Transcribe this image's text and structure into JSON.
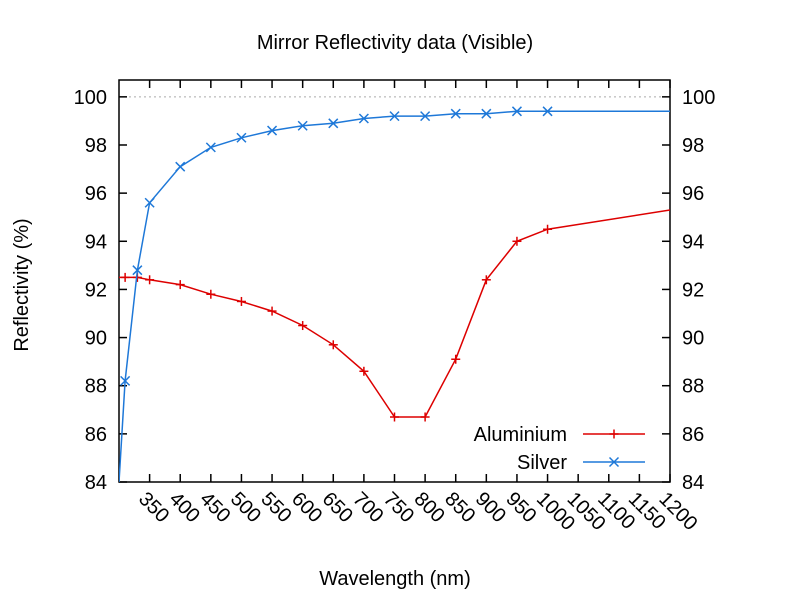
{
  "chart_data": {
    "type": "line",
    "title": "Mirror Reflectivity data (Visible)",
    "xlabel": "Wavelength (nm)",
    "ylabel": "Reflectivity (%)",
    "xlim": [
      300,
      1200
    ],
    "ylim": [
      84,
      100.7
    ],
    "x_ticks": [
      350,
      400,
      450,
      500,
      550,
      600,
      650,
      700,
      750,
      800,
      850,
      900,
      950,
      1000,
      1050,
      1100,
      1150,
      1200
    ],
    "x_tick_labels": [
      "350",
      "400",
      "450",
      "500",
      "550",
      "600",
      "650",
      "700",
      "750",
      "800",
      "850",
      "900",
      "950",
      "1000",
      "1050",
      "1100",
      "1150",
      "1200"
    ],
    "y_ticks": [
      84,
      86,
      88,
      90,
      92,
      94,
      96,
      98,
      100
    ],
    "y_tick_labels": [
      "84",
      "86",
      "88",
      "90",
      "92",
      "94",
      "96",
      "98",
      "100"
    ],
    "reference_line": 100,
    "legend_position": "bottom-right",
    "series": [
      {
        "name": "Aluminium",
        "color": "#dd0000",
        "marker": "plus",
        "x": [
          300,
          310,
          330,
          350,
          400,
          450,
          500,
          550,
          600,
          650,
          700,
          750,
          800,
          850,
          900,
          950,
          1000,
          1200
        ],
        "y": [
          92.5,
          92.5,
          92.5,
          92.4,
          92.2,
          91.8,
          91.5,
          91.1,
          90.5,
          89.7,
          88.6,
          86.7,
          86.7,
          89.1,
          92.4,
          94.0,
          94.5,
          95.3
        ]
      },
      {
        "name": "Silver",
        "color": "#1e78d8",
        "marker": "cross",
        "x": [
          300,
          310,
          330,
          350,
          400,
          450,
          500,
          550,
          600,
          650,
          700,
          750,
          800,
          850,
          900,
          950,
          1000,
          1200
        ],
        "y": [
          84.0,
          88.2,
          92.8,
          95.6,
          97.1,
          97.9,
          98.3,
          98.6,
          98.8,
          98.9,
          99.1,
          99.2,
          99.2,
          99.3,
          99.3,
          99.4,
          99.4,
          99.4
        ]
      }
    ]
  }
}
